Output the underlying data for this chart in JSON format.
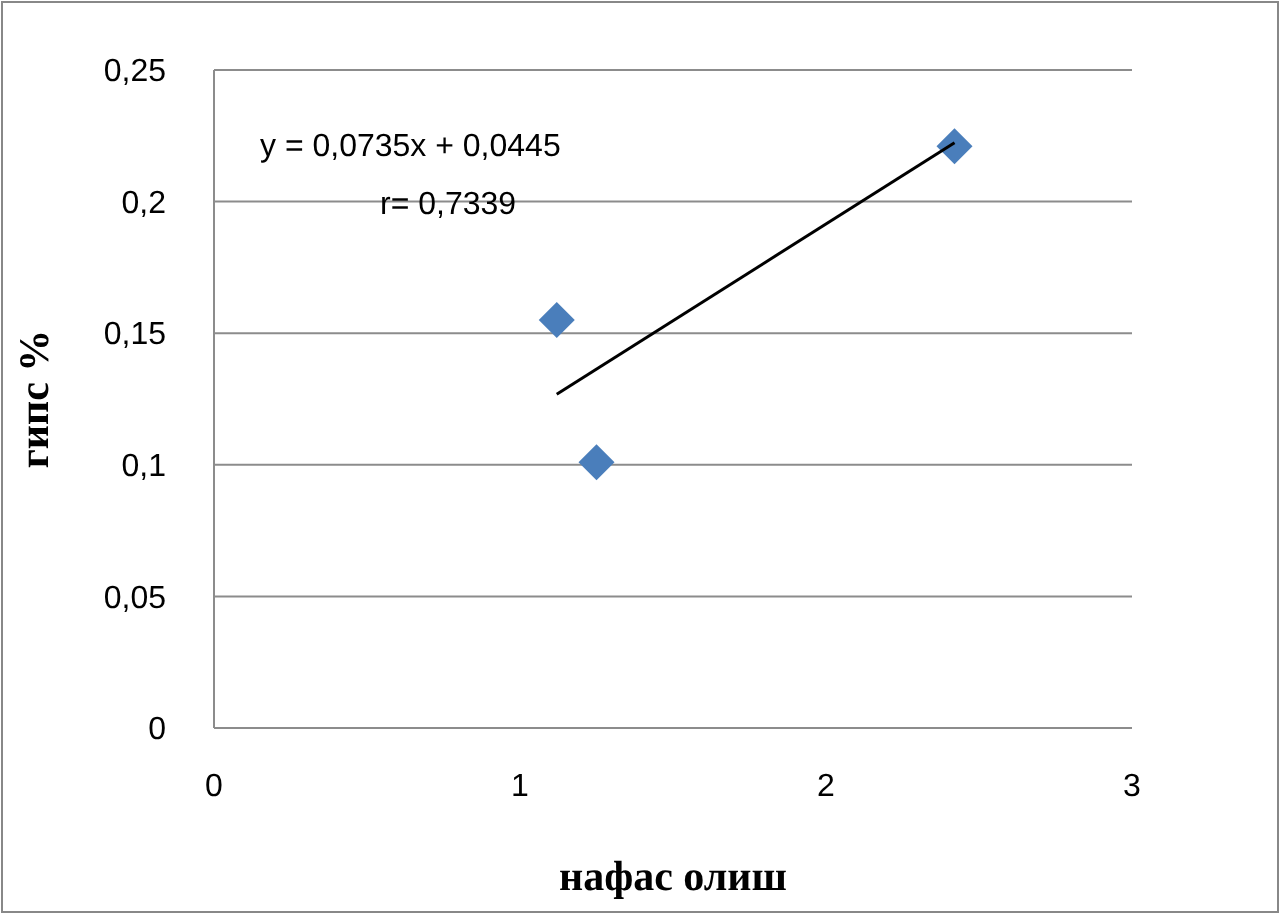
{
  "chart_data": {
    "type": "scatter",
    "xlabel": "нафас олиш",
    "ylabel": "гипс %",
    "xlim": [
      0,
      3
    ],
    "ylim": [
      0,
      0.25
    ],
    "xticks": [
      0,
      1,
      2,
      3
    ],
    "yticks": [
      {
        "value": 0,
        "label": "0"
      },
      {
        "value": 0.05,
        "label": "0,05"
      },
      {
        "value": 0.1,
        "label": "0,1"
      },
      {
        "value": 0.15,
        "label": "0,15"
      },
      {
        "value": 0.2,
        "label": "0,2"
      },
      {
        "value": 0.25,
        "label": "0,25"
      }
    ],
    "grid": "y",
    "series": [
      {
        "color": "#4a7ebb",
        "marker": "diamond",
        "x": [
          1.12,
          1.25,
          2.42
        ],
        "values": [
          0.155,
          0.101,
          0.221
        ]
      },
      {
        "type": "line",
        "color": "#000000",
        "marker": "none",
        "x": [
          1.12,
          2.42
        ],
        "values": [
          0.1268,
          0.2224
        ]
      }
    ],
    "annotations": [
      "y = 0,0735x + 0,0445",
      "r= 0,7339"
    ]
  }
}
